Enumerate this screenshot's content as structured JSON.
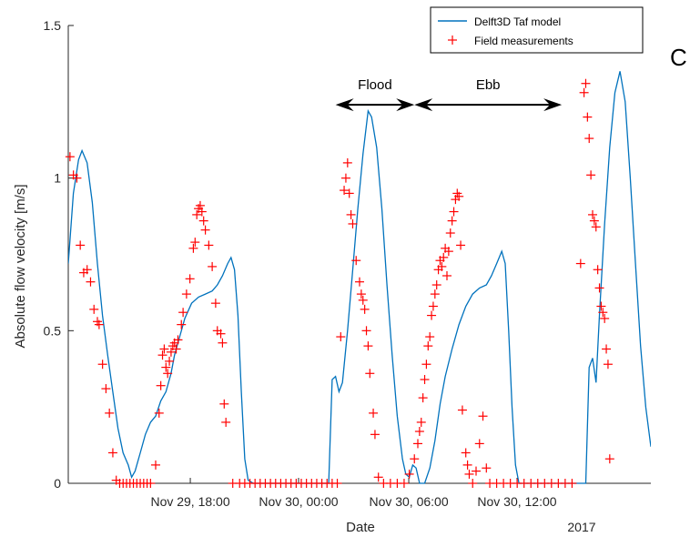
{
  "panel_label": "C",
  "chart_data": {
    "type": "line",
    "xlabel": "Date",
    "ylabel": "Absolute flow velocity [m/s]",
    "xlim": [
      7.2,
      22.0
    ],
    "ylim": [
      0,
      1.5
    ],
    "x_unit": "hours since Nov 29, 00:00",
    "x_ticks": [
      {
        "value": 18,
        "label": "Nov 29, 18:00"
      },
      {
        "value": 24,
        "label": "Nov 30, 00:00"
      },
      {
        "value": 30,
        "label": "Nov 30, 06:00"
      },
      {
        "value": 36,
        "label": "Nov 30, 12:00"
      }
    ],
    "x_ticks_compact": [
      10.3,
      13.05,
      15.85,
      18.6
    ],
    "year_label": "2017",
    "y_ticks": [
      0,
      0.5,
      1,
      1.5
    ],
    "y_tick_labels": [
      "0",
      "0.5",
      "1",
      "1.5"
    ],
    "grid": false,
    "legend_position": "top-right",
    "series": [
      {
        "name": "Delft3D Taf model",
        "kind": "line",
        "color": "#0072BD",
        "points": [
          [
            7.2,
            0.72
          ],
          [
            7.35,
            0.95
          ],
          [
            7.5,
            1.06
          ],
          [
            7.6,
            1.09
          ],
          [
            7.75,
            1.05
          ],
          [
            7.9,
            0.92
          ],
          [
            8.05,
            0.72
          ],
          [
            8.2,
            0.55
          ],
          [
            8.35,
            0.42
          ],
          [
            8.5,
            0.3
          ],
          [
            8.65,
            0.18
          ],
          [
            8.8,
            0.1
          ],
          [
            8.95,
            0.06
          ],
          [
            9.05,
            0.02
          ],
          [
            9.15,
            0.04
          ],
          [
            9.3,
            0.1
          ],
          [
            9.45,
            0.16
          ],
          [
            9.6,
            0.2
          ],
          [
            9.75,
            0.22
          ],
          [
            9.9,
            0.27
          ],
          [
            10.05,
            0.3
          ],
          [
            10.2,
            0.36
          ],
          [
            10.3,
            0.42
          ],
          [
            10.45,
            0.48
          ],
          [
            10.6,
            0.54
          ],
          [
            10.8,
            0.59
          ],
          [
            11.0,
            0.61
          ],
          [
            11.2,
            0.62
          ],
          [
            11.4,
            0.63
          ],
          [
            11.55,
            0.65
          ],
          [
            11.7,
            0.68
          ],
          [
            11.85,
            0.72
          ],
          [
            11.95,
            0.74
          ],
          [
            12.05,
            0.7
          ],
          [
            12.15,
            0.55
          ],
          [
            12.25,
            0.3
          ],
          [
            12.35,
            0.08
          ],
          [
            12.45,
            0.01
          ],
          [
            12.6,
            0
          ],
          [
            14.8,
            0
          ],
          [
            14.9,
            0.34
          ],
          [
            15.0,
            0.35
          ],
          [
            15.1,
            0.3
          ],
          [
            15.2,
            0.33
          ],
          [
            15.35,
            0.5
          ],
          [
            15.5,
            0.7
          ],
          [
            15.65,
            0.9
          ],
          [
            15.8,
            1.08
          ],
          [
            15.95,
            1.22
          ],
          [
            16.05,
            1.2
          ],
          [
            16.2,
            1.1
          ],
          [
            16.35,
            0.9
          ],
          [
            16.5,
            0.65
          ],
          [
            16.65,
            0.42
          ],
          [
            16.8,
            0.22
          ],
          [
            16.95,
            0.08
          ],
          [
            17.05,
            0.03
          ],
          [
            17.15,
            0.02
          ],
          [
            17.25,
            0.06
          ],
          [
            17.35,
            0.05
          ],
          [
            17.45,
            0
          ],
          [
            17.6,
            0
          ],
          [
            17.75,
            0.05
          ],
          [
            17.9,
            0.14
          ],
          [
            18.05,
            0.26
          ],
          [
            18.2,
            0.35
          ],
          [
            18.4,
            0.44
          ],
          [
            18.6,
            0.52
          ],
          [
            18.8,
            0.58
          ],
          [
            19.0,
            0.62
          ],
          [
            19.2,
            0.64
          ],
          [
            19.4,
            0.65
          ],
          [
            19.55,
            0.68
          ],
          [
            19.7,
            0.72
          ],
          [
            19.85,
            0.76
          ],
          [
            19.95,
            0.72
          ],
          [
            20.05,
            0.5
          ],
          [
            20.15,
            0.25
          ],
          [
            20.25,
            0.06
          ],
          [
            20.35,
            0
          ],
          [
            22.3,
            0
          ],
          [
            22.4,
            0.38
          ],
          [
            22.5,
            0.41
          ],
          [
            22.6,
            0.33
          ],
          [
            22.7,
            0.55
          ],
          [
            22.85,
            0.85
          ],
          [
            23.0,
            1.1
          ],
          [
            23.15,
            1.28
          ],
          [
            23.3,
            1.35
          ],
          [
            23.45,
            1.25
          ],
          [
            23.6,
            1.0
          ],
          [
            23.75,
            0.72
          ],
          [
            23.9,
            0.45
          ],
          [
            24.05,
            0.25
          ],
          [
            24.2,
            0.12
          ]
        ]
      },
      {
        "name": "Field measurements",
        "kind": "scatter",
        "marker": "+",
        "color": "#FF0000",
        "points": [
          [
            7.25,
            1.07
          ],
          [
            7.35,
            1.01
          ],
          [
            7.45,
            1.0
          ],
          [
            7.55,
            0.78
          ],
          [
            7.65,
            0.69
          ],
          [
            7.75,
            0.7
          ],
          [
            7.85,
            0.66
          ],
          [
            7.95,
            0.57
          ],
          [
            8.05,
            0.53
          ],
          [
            8.1,
            0.52
          ],
          [
            8.2,
            0.39
          ],
          [
            8.3,
            0.31
          ],
          [
            8.4,
            0.23
          ],
          [
            8.5,
            0.1
          ],
          [
            8.6,
            0.01
          ],
          [
            8.7,
            0
          ],
          [
            8.8,
            0
          ],
          [
            8.9,
            0
          ],
          [
            9.0,
            0
          ],
          [
            9.1,
            0
          ],
          [
            9.2,
            0
          ],
          [
            9.3,
            0
          ],
          [
            9.4,
            0
          ],
          [
            9.5,
            0
          ],
          [
            9.6,
            0
          ],
          [
            9.75,
            0.06
          ],
          [
            9.85,
            0.23
          ],
          [
            9.9,
            0.32
          ],
          [
            9.95,
            0.42
          ],
          [
            10.0,
            0.44
          ],
          [
            10.05,
            0.38
          ],
          [
            10.1,
            0.36
          ],
          [
            10.15,
            0.4
          ],
          [
            10.2,
            0.43
          ],
          [
            10.25,
            0.45
          ],
          [
            10.3,
            0.46
          ],
          [
            10.35,
            0.44
          ],
          [
            10.4,
            0.47
          ],
          [
            10.5,
            0.52
          ],
          [
            10.55,
            0.56
          ],
          [
            10.65,
            0.62
          ],
          [
            10.75,
            0.67
          ],
          [
            10.85,
            0.77
          ],
          [
            10.9,
            0.79
          ],
          [
            10.95,
            0.88
          ],
          [
            11.0,
            0.9
          ],
          [
            11.05,
            0.91
          ],
          [
            11.1,
            0.89
          ],
          [
            11.15,
            0.86
          ],
          [
            11.2,
            0.83
          ],
          [
            11.3,
            0.78
          ],
          [
            11.4,
            0.71
          ],
          [
            11.5,
            0.59
          ],
          [
            11.55,
            0.5
          ],
          [
            11.65,
            0.49
          ],
          [
            11.7,
            0.46
          ],
          [
            11.75,
            0.26
          ],
          [
            11.8,
            0.2
          ],
          [
            12.0,
            0
          ],
          [
            12.2,
            0
          ],
          [
            12.35,
            0
          ],
          [
            12.5,
            0
          ],
          [
            12.65,
            0
          ],
          [
            12.8,
            0
          ],
          [
            12.95,
            0
          ],
          [
            13.1,
            0
          ],
          [
            13.25,
            0
          ],
          [
            13.4,
            0
          ],
          [
            13.55,
            0
          ],
          [
            13.7,
            0
          ],
          [
            13.85,
            0
          ],
          [
            14.0,
            0
          ],
          [
            14.15,
            0
          ],
          [
            14.3,
            0
          ],
          [
            14.45,
            0
          ],
          [
            14.6,
            0
          ],
          [
            14.75,
            0
          ],
          [
            14.9,
            0
          ],
          [
            15.05,
            0
          ],
          [
            15.15,
            0.48
          ],
          [
            15.25,
            0.96
          ],
          [
            15.3,
            1.0
          ],
          [
            15.35,
            1.05
          ],
          [
            15.4,
            0.95
          ],
          [
            15.45,
            0.88
          ],
          [
            15.5,
            0.85
          ],
          [
            15.6,
            0.73
          ],
          [
            15.7,
            0.66
          ],
          [
            15.75,
            0.62
          ],
          [
            15.8,
            0.6
          ],
          [
            15.85,
            0.57
          ],
          [
            15.9,
            0.5
          ],
          [
            15.95,
            0.45
          ],
          [
            16.0,
            0.36
          ],
          [
            16.1,
            0.23
          ],
          [
            16.15,
            0.16
          ],
          [
            16.25,
            0.02
          ],
          [
            16.4,
            0
          ],
          [
            16.6,
            0
          ],
          [
            16.8,
            0
          ],
          [
            17.0,
            0
          ],
          [
            17.15,
            0.03
          ],
          [
            17.3,
            0.08
          ],
          [
            17.4,
            0.13
          ],
          [
            17.45,
            0.17
          ],
          [
            17.5,
            0.2
          ],
          [
            17.55,
            0.28
          ],
          [
            17.6,
            0.34
          ],
          [
            17.65,
            0.39
          ],
          [
            17.7,
            0.45
          ],
          [
            17.75,
            0.48
          ],
          [
            17.8,
            0.55
          ],
          [
            17.85,
            0.58
          ],
          [
            17.9,
            0.62
          ],
          [
            17.95,
            0.65
          ],
          [
            18.0,
            0.7
          ],
          [
            18.05,
            0.73
          ],
          [
            18.1,
            0.71
          ],
          [
            18.15,
            0.74
          ],
          [
            18.2,
            0.77
          ],
          [
            18.25,
            0.68
          ],
          [
            18.3,
            0.76
          ],
          [
            18.35,
            0.82
          ],
          [
            18.4,
            0.86
          ],
          [
            18.45,
            0.89
          ],
          [
            18.5,
            0.93
          ],
          [
            18.55,
            0.95
          ],
          [
            18.6,
            0.94
          ],
          [
            18.65,
            0.78
          ],
          [
            18.7,
            0.24
          ],
          [
            18.8,
            0.1
          ],
          [
            18.85,
            0.06
          ],
          [
            18.9,
            0.03
          ],
          [
            19.0,
            0
          ],
          [
            19.1,
            0.04
          ],
          [
            19.2,
            0.13
          ],
          [
            19.3,
            0.22
          ],
          [
            19.4,
            0.05
          ],
          [
            19.5,
            0
          ],
          [
            19.7,
            0
          ],
          [
            19.9,
            0
          ],
          [
            20.1,
            0
          ],
          [
            20.3,
            0
          ],
          [
            20.5,
            0
          ],
          [
            20.7,
            0
          ],
          [
            20.9,
            0
          ],
          [
            21.1,
            0
          ],
          [
            21.3,
            0
          ],
          [
            21.5,
            0
          ],
          [
            21.7,
            0
          ],
          [
            21.9,
            0
          ],
          [
            22.15,
            0.72
          ],
          [
            22.25,
            1.28
          ],
          [
            22.3,
            1.31
          ],
          [
            22.35,
            1.2
          ],
          [
            22.4,
            1.13
          ],
          [
            22.45,
            1.01
          ],
          [
            22.5,
            0.88
          ],
          [
            22.55,
            0.86
          ],
          [
            22.6,
            0.84
          ],
          [
            22.65,
            0.7
          ],
          [
            22.7,
            0.64
          ],
          [
            22.75,
            0.58
          ],
          [
            22.8,
            0.56
          ],
          [
            22.85,
            0.54
          ],
          [
            22.9,
            0.44
          ],
          [
            22.95,
            0.39
          ],
          [
            23.0,
            0.08
          ]
        ]
      }
    ],
    "annotations": [
      {
        "text": "Flood",
        "from": 15.0,
        "to": 17.3,
        "y": 1.24,
        "style": "double-arrow"
      },
      {
        "text": "Ebb",
        "from": 17.3,
        "to": 21.6,
        "y": 1.24,
        "style": "double-arrow"
      }
    ]
  }
}
